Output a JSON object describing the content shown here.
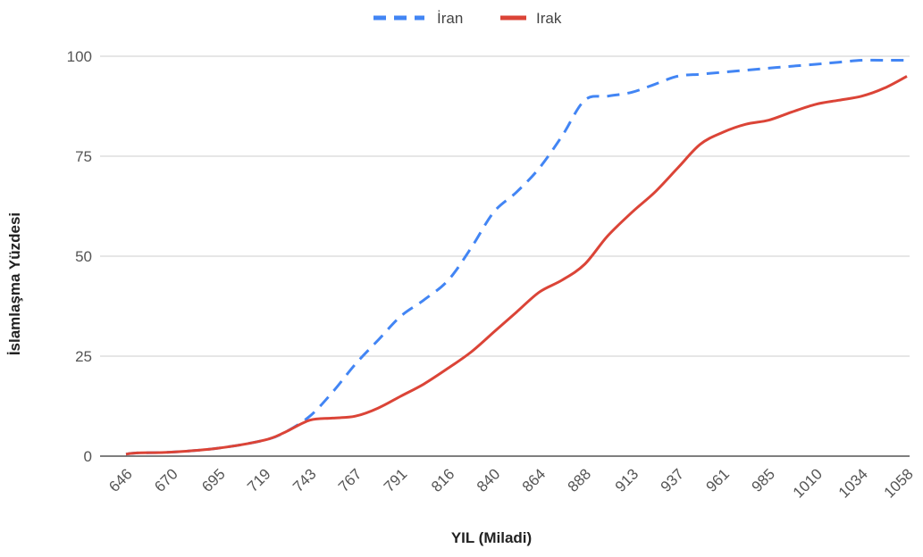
{
  "chart_data": {
    "type": "line",
    "title": "",
    "xlabel": "YIL (Miladi)",
    "ylabel": "İslamlaşma Yüzdesi",
    "categories": [
      "646",
      "670",
      "695",
      "719",
      "743",
      "767",
      "791",
      "816",
      "840",
      "864",
      "888",
      "913",
      "937",
      "961",
      "985",
      "1010",
      "1034",
      "1058"
    ],
    "x": [
      646,
      652,
      670,
      695,
      719,
      730,
      743,
      755,
      767,
      779,
      791,
      803,
      816,
      828,
      840,
      852,
      864,
      876,
      888,
      900,
      913,
      925,
      937,
      949,
      961,
      973,
      985,
      997,
      1010,
      1022,
      1034,
      1046,
      1058
    ],
    "yticks": [
      0,
      25,
      50,
      75,
      100
    ],
    "ylim": [
      0,
      100
    ],
    "grid": true,
    "legend_position": "top",
    "series": [
      {
        "name": "İran",
        "color": "#4285f4",
        "style": "dashed",
        "values": [
          0.5,
          0.8,
          1,
          2,
          4,
          6,
          10,
          16,
          23,
          29,
          35,
          39,
          44,
          52,
          61,
          66,
          72,
          80,
          89,
          90,
          91,
          93,
          95,
          95.5,
          96,
          96.5,
          97,
          97.5,
          98,
          98.5,
          99,
          99,
          99
        ]
      },
      {
        "name": "Irak",
        "color": "#db4437",
        "style": "solid",
        "values": [
          0.5,
          0.8,
          1,
          2,
          4,
          6,
          9,
          9.5,
          10,
          12,
          15,
          18,
          22,
          26,
          31,
          36,
          41,
          44,
          48,
          55,
          61,
          66,
          72,
          78,
          81,
          83,
          84,
          86,
          88,
          89,
          90,
          92,
          95
        ]
      }
    ]
  }
}
